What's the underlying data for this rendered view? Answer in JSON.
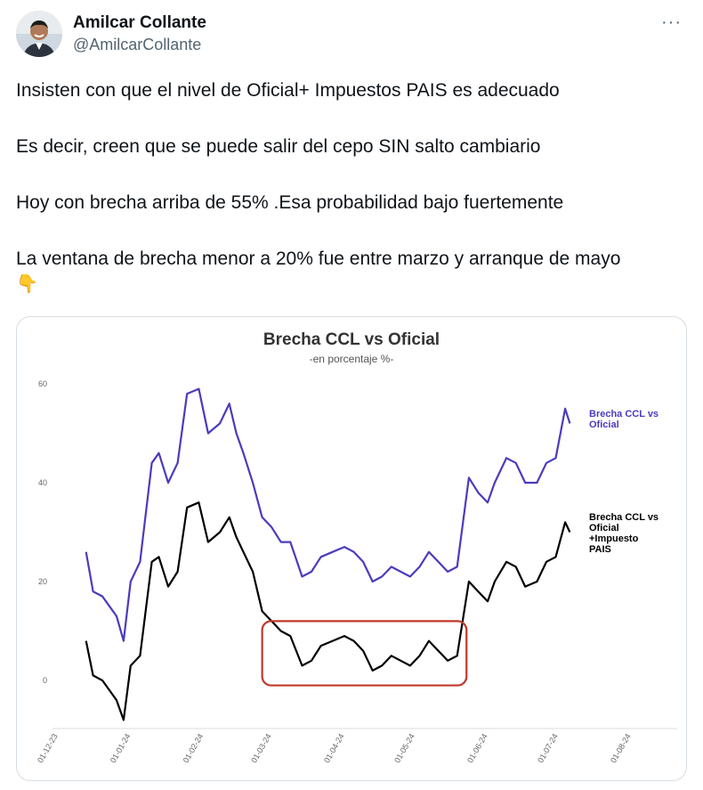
{
  "author": {
    "display_name": "Amilcar Collante",
    "handle": "@AmilcarCollante"
  },
  "more_icon": "more-options-icon",
  "tweet_text": [
    "Insisten con que el nivel de Oficial+ Impuestos PAIS es adecuado",
    "Es decir, creen  que se puede salir del cepo SIN salto cambiario",
    "Hoy con brecha arriba de 55% .Esa probabilidad bajo fuertemente",
    "La ventana de brecha menor a 20% fue entre marzo y arranque de mayo"
  ],
  "emoji": "👇",
  "chart_data": {
    "type": "line",
    "title": "Brecha CCL vs Oficial",
    "subtitle": "-en porcentaje %-",
    "x_ticks": [
      "01-12-23",
      "01-01-24",
      "01-02-24",
      "01-03-24",
      "01-04-24",
      "01-05-24",
      "01-06-24",
      "01-07-24",
      "01-08-24"
    ],
    "y_ticks": [
      0,
      20,
      40,
      60
    ],
    "ylim": [
      -10,
      62
    ],
    "grid": false,
    "series": [
      {
        "name": "Brecha CCL vs Oficial",
        "color": "#4b3bbd",
        "points": [
          [
            "2023-12-13",
            26
          ],
          [
            "2023-12-16",
            18
          ],
          [
            "2023-12-20",
            17
          ],
          [
            "2023-12-26",
            13
          ],
          [
            "2023-12-29",
            8
          ],
          [
            "2024-01-01",
            20
          ],
          [
            "2024-01-05",
            24
          ],
          [
            "2024-01-10",
            44
          ],
          [
            "2024-01-13",
            46
          ],
          [
            "2024-01-17",
            40
          ],
          [
            "2024-01-21",
            44
          ],
          [
            "2024-01-25",
            58
          ],
          [
            "2024-01-30",
            59
          ],
          [
            "2024-02-03",
            50
          ],
          [
            "2024-02-08",
            52
          ],
          [
            "2024-02-12",
            56
          ],
          [
            "2024-02-15",
            50
          ],
          [
            "2024-02-18",
            46
          ],
          [
            "2024-02-22",
            40
          ],
          [
            "2024-02-26",
            33
          ],
          [
            "2024-03-01",
            31
          ],
          [
            "2024-03-05",
            28
          ],
          [
            "2024-03-09",
            28
          ],
          [
            "2024-03-14",
            21
          ],
          [
            "2024-03-18",
            22
          ],
          [
            "2024-03-22",
            25
          ],
          [
            "2024-03-27",
            26
          ],
          [
            "2024-04-01",
            27
          ],
          [
            "2024-04-05",
            26
          ],
          [
            "2024-04-09",
            24
          ],
          [
            "2024-04-13",
            20
          ],
          [
            "2024-04-17",
            21
          ],
          [
            "2024-04-21",
            23
          ],
          [
            "2024-04-25",
            22
          ],
          [
            "2024-04-29",
            21
          ],
          [
            "2024-05-03",
            23
          ],
          [
            "2024-05-07",
            26
          ],
          [
            "2024-05-11",
            24
          ],
          [
            "2024-05-15",
            22
          ],
          [
            "2024-05-19",
            23
          ],
          [
            "2024-05-24",
            41
          ],
          [
            "2024-05-28",
            38
          ],
          [
            "2024-06-01",
            36
          ],
          [
            "2024-06-04",
            40
          ],
          [
            "2024-06-09",
            45
          ],
          [
            "2024-06-13",
            44
          ],
          [
            "2024-06-17",
            40
          ],
          [
            "2024-06-22",
            40
          ],
          [
            "2024-06-26",
            44
          ],
          [
            "2024-06-30",
            45
          ],
          [
            "2024-07-04",
            55
          ],
          [
            "2024-07-06",
            52
          ]
        ]
      },
      {
        "name": "Brecha CCL vs Oficial +Impuesto PAIS",
        "color": "#000000",
        "points": [
          [
            "2023-12-13",
            8
          ],
          [
            "2023-12-16",
            1
          ],
          [
            "2023-12-20",
            0
          ],
          [
            "2023-12-26",
            -4
          ],
          [
            "2023-12-29",
            -8
          ],
          [
            "2024-01-01",
            3
          ],
          [
            "2024-01-05",
            5
          ],
          [
            "2024-01-10",
            24
          ],
          [
            "2024-01-13",
            25
          ],
          [
            "2024-01-17",
            19
          ],
          [
            "2024-01-21",
            22
          ],
          [
            "2024-01-25",
            35
          ],
          [
            "2024-01-30",
            36
          ],
          [
            "2024-02-03",
            28
          ],
          [
            "2024-02-08",
            30
          ],
          [
            "2024-02-12",
            33
          ],
          [
            "2024-02-15",
            29
          ],
          [
            "2024-02-18",
            26
          ],
          [
            "2024-02-22",
            22
          ],
          [
            "2024-02-26",
            14
          ],
          [
            "2024-03-01",
            12
          ],
          [
            "2024-03-05",
            10
          ],
          [
            "2024-03-09",
            9
          ],
          [
            "2024-03-14",
            3
          ],
          [
            "2024-03-18",
            4
          ],
          [
            "2024-03-22",
            7
          ],
          [
            "2024-03-27",
            8
          ],
          [
            "2024-04-01",
            9
          ],
          [
            "2024-04-05",
            8
          ],
          [
            "2024-04-09",
            6
          ],
          [
            "2024-04-13",
            2
          ],
          [
            "2024-04-17",
            3
          ],
          [
            "2024-04-21",
            5
          ],
          [
            "2024-04-25",
            4
          ],
          [
            "2024-04-29",
            3
          ],
          [
            "2024-05-03",
            5
          ],
          [
            "2024-05-07",
            8
          ],
          [
            "2024-05-11",
            6
          ],
          [
            "2024-05-15",
            4
          ],
          [
            "2024-05-19",
            5
          ],
          [
            "2024-05-24",
            20
          ],
          [
            "2024-05-28",
            18
          ],
          [
            "2024-06-01",
            16
          ],
          [
            "2024-06-04",
            20
          ],
          [
            "2024-06-09",
            24
          ],
          [
            "2024-06-13",
            23
          ],
          [
            "2024-06-17",
            19
          ],
          [
            "2024-06-22",
            20
          ],
          [
            "2024-06-26",
            24
          ],
          [
            "2024-06-30",
            25
          ],
          [
            "2024-07-04",
            32
          ],
          [
            "2024-07-06",
            30
          ]
        ]
      }
    ],
    "legend_labels": [
      [
        "Brecha CCL vs",
        "Oficial"
      ],
      [
        "Brecha CCL vs",
        "Oficial",
        "+Impuesto",
        "PAIS"
      ]
    ],
    "annotation": {
      "shape": "rounded-rectangle",
      "color": "#c0392b",
      "x_range": [
        "2024-02-26",
        "2024-05-23"
      ],
      "y_range": [
        -1,
        12
      ]
    }
  }
}
